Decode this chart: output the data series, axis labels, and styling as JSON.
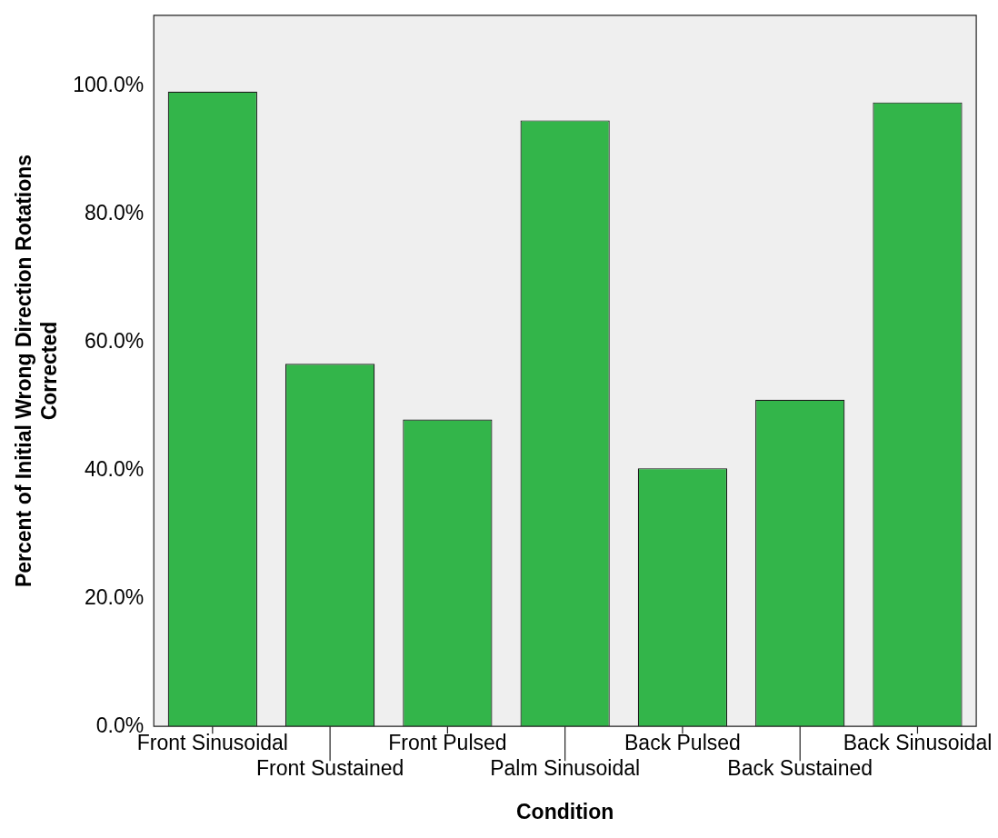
{
  "chart_data": {
    "type": "bar",
    "xlabel": "Condition",
    "ylabel": "Percent of Initial Wrong Direction Rotations\nCorrected",
    "categories": [
      "Front Sinusoidal",
      "Front Sustained",
      "Front Pulsed",
      "Palm Sinusoidal",
      "Back Pulsed",
      "Back Sustained",
      "Back Sinusoidal"
    ],
    "values": [
      99.1,
      56.6,
      47.9,
      94.6,
      40.3,
      51.0,
      97.4
    ],
    "color": "#33b54a",
    "ylim": [
      0,
      111
    ],
    "yticks": [
      {
        "value": 0,
        "label": "0.0%"
      },
      {
        "value": 20,
        "label": "20.0%"
      },
      {
        "value": 40,
        "label": "40.0%"
      },
      {
        "value": 60,
        "label": "60.0%"
      },
      {
        "value": 80,
        "label": "80.0%"
      },
      {
        "value": 100,
        "label": "100.0%"
      }
    ],
    "grid": false,
    "legend": false
  }
}
